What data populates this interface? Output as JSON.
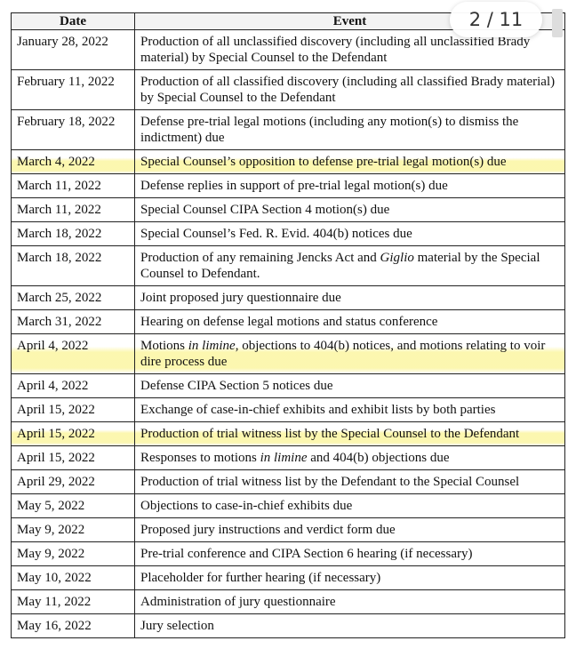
{
  "page_indicator": "2 / 11",
  "table": {
    "header": [
      "Date",
      "Event"
    ],
    "rows": [
      {
        "date": "January 28, 2022",
        "event": [
          "Production of all unclassified discovery (including all unclassified Brady material) by Special Counsel to the Defendant"
        ]
      },
      {
        "date": "February 11, 2022",
        "event": [
          "Production of all classified discovery (including all classified Brady material) by Special Counsel to the Defendant"
        ]
      },
      {
        "date": "February 18, 2022",
        "event": [
          "Defense pre-trial legal motions (including any motion(s) to dismiss the indictment) due"
        ]
      },
      {
        "date": "March 4, 2022",
        "event": [
          "Special Counsel’s opposition to defense pre-trial legal motion(s) due"
        ]
      },
      {
        "date": "March 11, 2022",
        "event": [
          "Defense replies in support of pre-trial legal motion(s) due"
        ]
      },
      {
        "date": "March 11, 2022",
        "event": [
          "Special Counsel CIPA Section 4 motion(s) due"
        ]
      },
      {
        "date": "March 18, 2022",
        "event": [
          "Special Counsel’s Fed. R. Evid. 404(b) notices due"
        ]
      },
      {
        "date": "March 18, 2022",
        "event": [
          "Production of any remaining Jencks Act and ",
          "Giglio",
          " material by the Special Counsel to Defendant."
        ]
      },
      {
        "date": "March 25, 2022",
        "event": [
          "Joint proposed jury questionnaire due"
        ]
      },
      {
        "date": "March 31, 2022",
        "event": [
          "Hearing on defense legal motions and status conference"
        ]
      },
      {
        "date": "April 4, 2022",
        "event": [
          "Motions ",
          "in limine",
          ", objections to 404(b) notices, and motions relating to voir dire process due"
        ]
      },
      {
        "date": "April 4, 2022",
        "event": [
          "Defense CIPA Section 5 notices due"
        ]
      },
      {
        "date": "April 15, 2022",
        "event": [
          "Exchange of case-in-chief exhibits and exhibit lists by both parties"
        ]
      },
      {
        "date": "April 15, 2022",
        "event": [
          "Production of trial witness list by the Special Counsel to the Defendant"
        ]
      },
      {
        "date": "April 15, 2022",
        "event": [
          "Responses to motions ",
          "in limine",
          " and 404(b) objections due"
        ]
      },
      {
        "date": "April 29, 2022",
        "event": [
          "Production of trial witness list by the Defendant to the Special Counsel"
        ]
      },
      {
        "date": "May 5, 2022",
        "event": [
          "Objections to case-in-chief exhibits due"
        ]
      },
      {
        "date": "May 9, 2022",
        "event": [
          "Proposed jury instructions and verdict form due"
        ]
      },
      {
        "date": "May 9, 2022",
        "event": [
          "Pre-trial conference and CIPA Section 6 hearing (if necessary)"
        ]
      },
      {
        "date": "May 10, 2022",
        "event": [
          "Placeholder for further hearing (if necessary)"
        ]
      },
      {
        "date": "May 11, 2022",
        "event": [
          "Administration of jury questionnaire"
        ]
      },
      {
        "date": "May 16, 2022",
        "event": [
          "Jury selection"
        ]
      }
    ]
  }
}
